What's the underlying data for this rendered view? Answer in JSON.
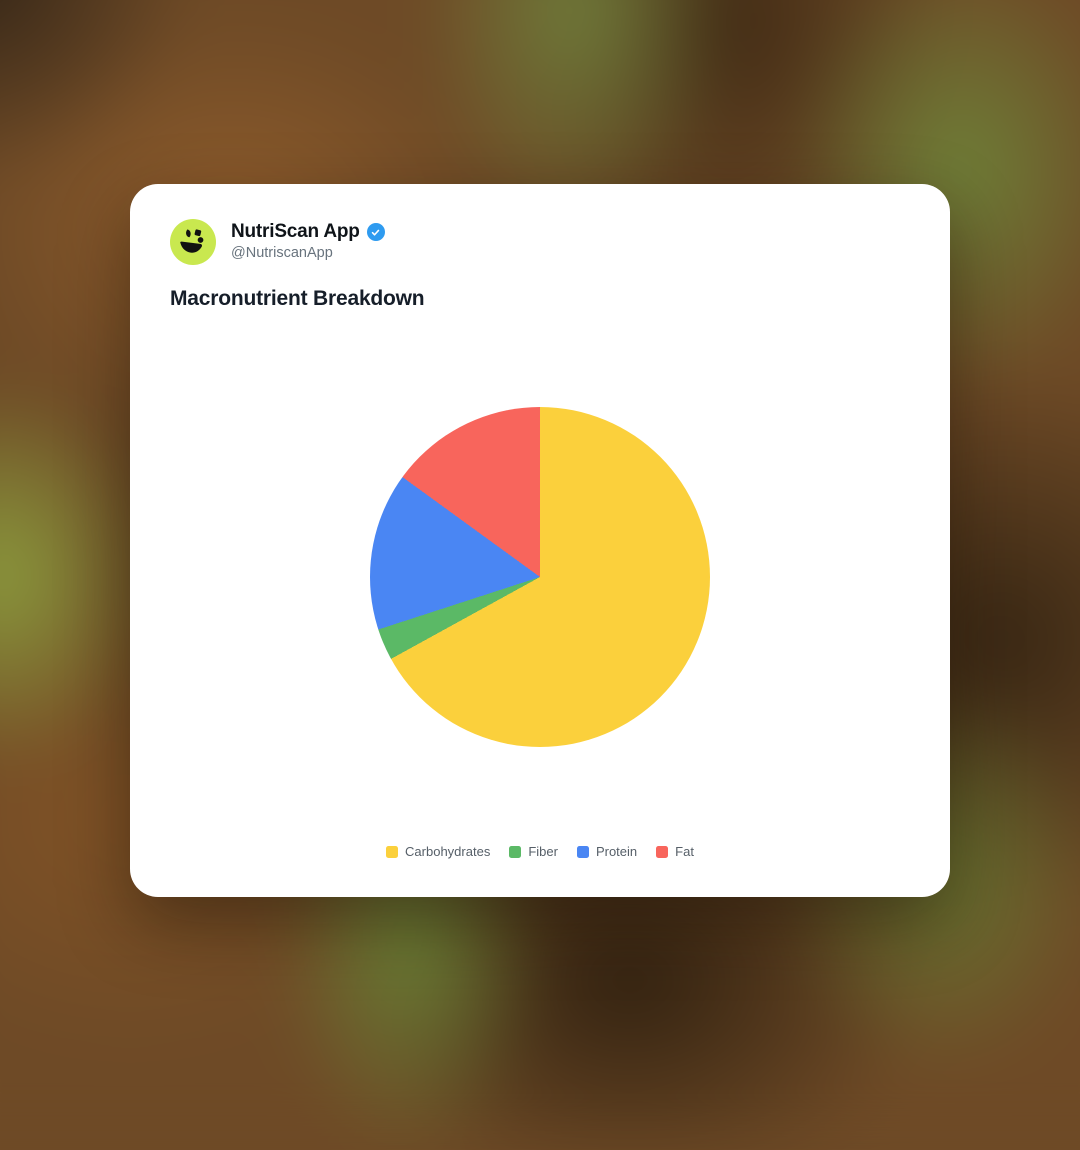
{
  "profile": {
    "name": "NutriScan App",
    "handle": "@NutriscanApp",
    "verified": true
  },
  "card": {
    "title": "Macronutrient Breakdown"
  },
  "chart_data": {
    "type": "pie",
    "title": "Macronutrient Breakdown",
    "slices": [
      {
        "label": "Carbohydrates",
        "value": 67,
        "color": "#FBD03C"
      },
      {
        "label": "Fiber",
        "value": 3,
        "color": "#5BB966"
      },
      {
        "label": "Protein",
        "value": 15,
        "color": "#4A86F3"
      },
      {
        "label": "Fat",
        "value": 15,
        "color": "#F8655C"
      }
    ],
    "values_unit": "percent",
    "start_angle_deg": 0,
    "direction": "clockwise",
    "legend_position": "bottom",
    "data_labels_shown": false
  },
  "colors": {
    "card_bg": "#FFFFFF",
    "verified_blue": "#2E9BF0",
    "avatar_bg": "#C9E84F",
    "name_text": "#0F1419",
    "handle_text": "#68737D",
    "title_text": "#161E29",
    "legend_text": "#565F68"
  }
}
